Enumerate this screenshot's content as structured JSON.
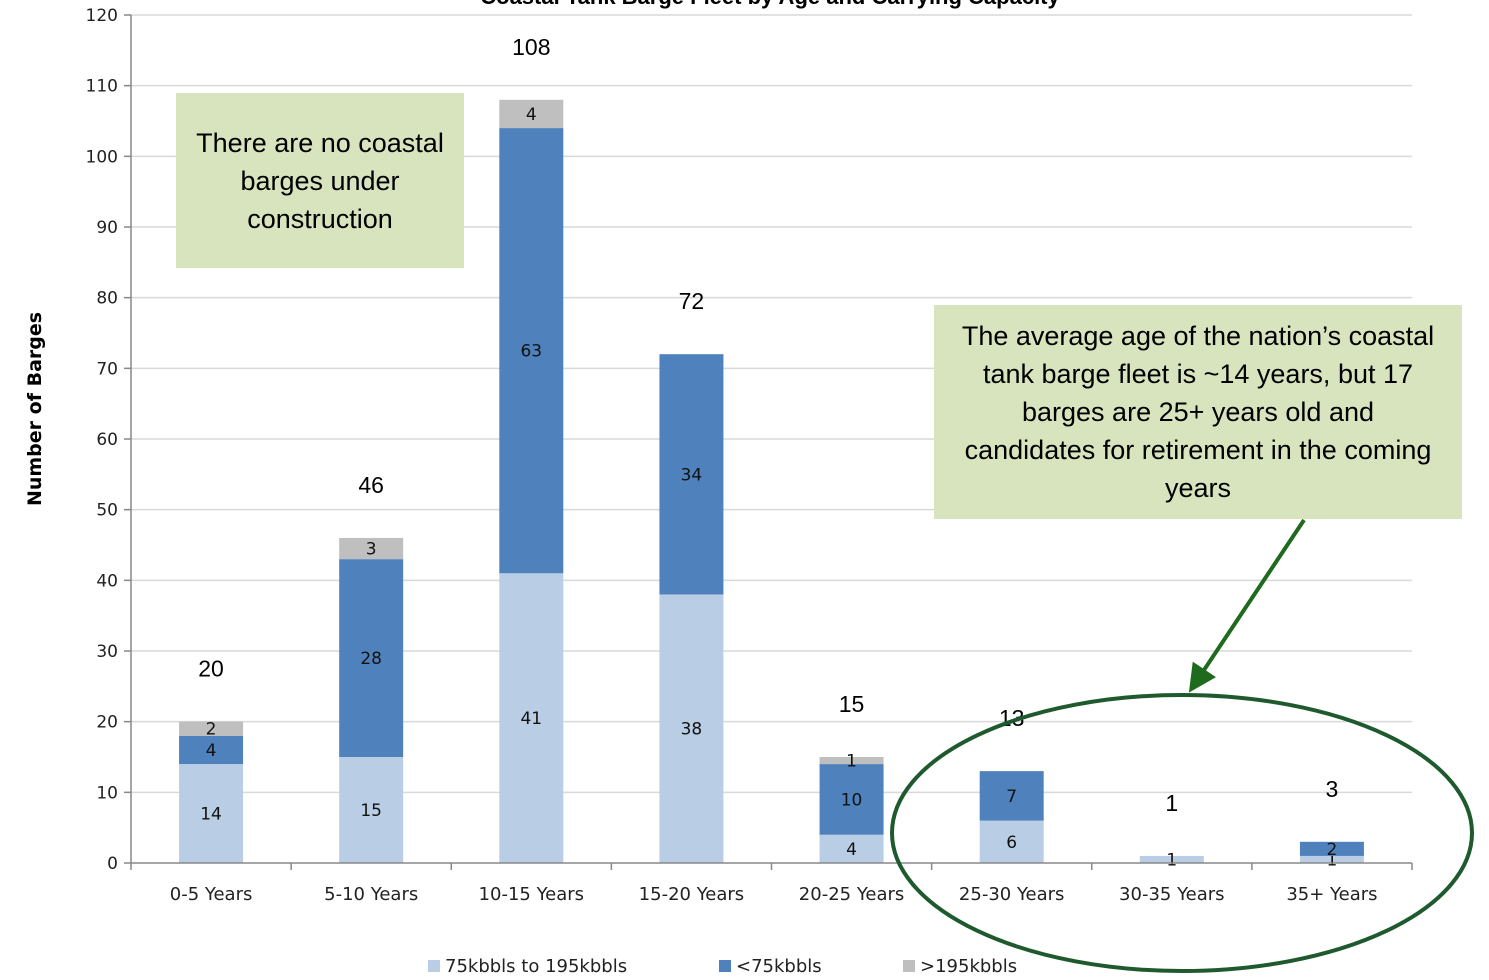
{
  "chart_data": {
    "type": "bar",
    "stacked": true,
    "title": "Coastal Tank Barge Fleet by Age and Carrying Capacity",
    "ylabel": "Number of Barges",
    "xlabel": "",
    "ylim": [
      0,
      120
    ],
    "yticks": [
      0,
      10,
      20,
      30,
      40,
      50,
      60,
      70,
      80,
      90,
      100,
      110,
      120
    ],
    "grid": true,
    "legend_position": "bottom",
    "categories": [
      "0-5 Years",
      "5-10 Years",
      "10-15 Years",
      "15-20 Years",
      "20-25 Years",
      "25-30 Years",
      "30-35 Years",
      "35+ Years"
    ],
    "series": [
      {
        "name": "75kbbls to 195kbbls",
        "color": "#b9cde5",
        "values": [
          14,
          15,
          41,
          38,
          4,
          6,
          1,
          1
        ]
      },
      {
        "name": "<75kbbls",
        "color": "#4f81bd",
        "values": [
          4,
          28,
          63,
          34,
          10,
          7,
          0,
          2
        ]
      },
      {
        "name": ">195kbbls",
        "color": "#bfbfbf",
        "values": [
          2,
          3,
          4,
          0,
          1,
          0,
          0,
          0
        ]
      }
    ],
    "totals": [
      20,
      46,
      108,
      72,
      15,
      13,
      1,
      3
    ],
    "annotations": [
      "There are no coastal barges under construction",
      "The average age of the nation’s coastal tank barge fleet is ~14 years, but 17 barges are 25+ years old and candidates for retirement in the coming years"
    ]
  },
  "colors": {
    "callout_fill": "#d7e4bd",
    "ellipse_stroke": "#1e5a2e",
    "arrow": "#1e6b1e",
    "gridline": "#d9d9d9"
  }
}
